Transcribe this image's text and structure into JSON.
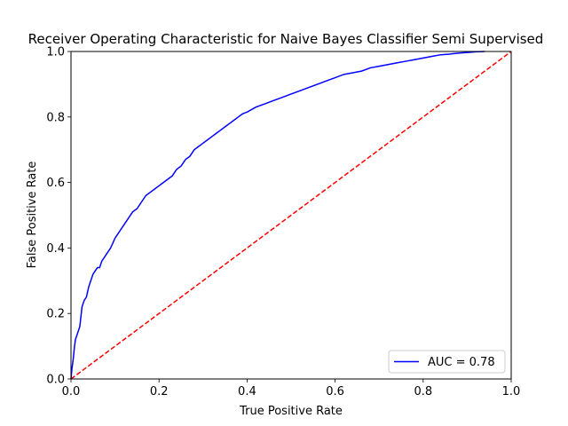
{
  "chart_data": {
    "type": "line",
    "title": "Receiver Operating Characteristic for Naive Bayes Classifier Semi Supervised",
    "xlabel": "True Positive Rate",
    "ylabel": "False Positive Rate",
    "xlim": [
      0,
      1
    ],
    "ylim": [
      0,
      1
    ],
    "xticks": [
      "0.0",
      "0.2",
      "0.4",
      "0.6",
      "0.8",
      "1.0"
    ],
    "yticks": [
      "0.0",
      "0.2",
      "0.4",
      "0.6",
      "0.8",
      "1.0"
    ],
    "grid": false,
    "legend_position": "lower-right",
    "series": [
      {
        "name": "AUC = 0.78",
        "color": "#0000ff",
        "style": "solid",
        "x": [
          0,
          0.002,
          0.005,
          0.008,
          0.01,
          0.015,
          0.02,
          0.025,
          0.03,
          0.035,
          0.04,
          0.045,
          0.05,
          0.055,
          0.06,
          0.065,
          0.07,
          0.08,
          0.09,
          0.1,
          0.11,
          0.12,
          0.13,
          0.14,
          0.15,
          0.16,
          0.17,
          0.18,
          0.19,
          0.2,
          0.21,
          0.22,
          0.23,
          0.24,
          0.25,
          0.26,
          0.27,
          0.28,
          0.29,
          0.3,
          0.31,
          0.32,
          0.33,
          0.34,
          0.35,
          0.36,
          0.37,
          0.38,
          0.39,
          0.4,
          0.42,
          0.44,
          0.46,
          0.48,
          0.5,
          0.52,
          0.54,
          0.56,
          0.58,
          0.6,
          0.62,
          0.64,
          0.66,
          0.68,
          0.7,
          0.72,
          0.74,
          0.76,
          0.78,
          0.8,
          0.82,
          0.84,
          0.86,
          0.88,
          0.9,
          0.92,
          0.94
        ],
        "y": [
          0,
          0.03,
          0.06,
          0.1,
          0.12,
          0.14,
          0.16,
          0.22,
          0.24,
          0.25,
          0.28,
          0.3,
          0.32,
          0.33,
          0.34,
          0.34,
          0.36,
          0.38,
          0.4,
          0.43,
          0.45,
          0.47,
          0.49,
          0.51,
          0.52,
          0.54,
          0.56,
          0.57,
          0.58,
          0.59,
          0.6,
          0.61,
          0.62,
          0.64,
          0.65,
          0.67,
          0.68,
          0.7,
          0.71,
          0.72,
          0.73,
          0.74,
          0.75,
          0.76,
          0.77,
          0.78,
          0.79,
          0.8,
          0.81,
          0.815,
          0.83,
          0.84,
          0.85,
          0.86,
          0.87,
          0.88,
          0.89,
          0.9,
          0.91,
          0.92,
          0.93,
          0.935,
          0.94,
          0.95,
          0.955,
          0.96,
          0.965,
          0.97,
          0.975,
          0.98,
          0.985,
          0.99,
          0.992,
          0.995,
          0.997,
          0.999,
          1.0
        ]
      },
      {
        "name": "",
        "color": "#ff0000",
        "style": "dashed",
        "x": [
          0,
          1
        ],
        "y": [
          0,
          1
        ]
      }
    ]
  }
}
